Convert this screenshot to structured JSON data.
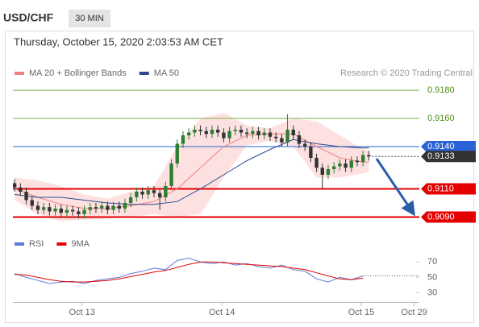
{
  "header": {
    "symbol": "USD/CHF",
    "interval": "30 MIN",
    "timestamp": "Thursday, October 15, 2020 2:03:53 AM CET"
  },
  "chart_data": [
    {
      "type": "candlestick",
      "credit": "Research © 2020 Trading Central",
      "xlim": [
        -0.3,
        69.7
      ],
      "ylim": [
        0.90811,
        0.91869
      ],
      "up_color": "#2e7d32",
      "down_color": "#333333",
      "candles": {
        "open": [
          0.9114,
          0.9111,
          0.9108,
          0.9102,
          0.9098,
          0.9095,
          0.9097,
          0.9094,
          0.9096,
          0.9093,
          0.9095,
          0.9094,
          0.9092,
          0.9095,
          0.9097,
          0.9096,
          0.9098,
          0.9095,
          0.9098,
          0.9096,
          0.91,
          0.9104,
          0.9108,
          0.9106,
          0.9109,
          0.9107,
          0.9104,
          0.9112,
          0.9128,
          0.9142,
          0.9148,
          0.915,
          0.9152,
          0.9151,
          0.9149,
          0.9152,
          0.915,
          0.9146,
          0.9151,
          0.9152,
          0.915,
          0.9149,
          0.9151,
          0.9148,
          0.915,
          0.9147,
          0.9146,
          0.9143,
          0.9152,
          0.9148,
          0.9142,
          0.914,
          0.9132,
          0.9125,
          0.912,
          0.9124,
          0.9126,
          0.9128,
          0.9125,
          0.913,
          0.9129,
          0.9134
        ],
        "high": [
          0.9117,
          0.9114,
          0.9111,
          0.9105,
          0.9101,
          0.91,
          0.91,
          0.9099,
          0.9099,
          0.9098,
          0.9098,
          0.9097,
          0.9098,
          0.91,
          0.91,
          0.9101,
          0.9101,
          0.9101,
          0.9101,
          0.9103,
          0.9107,
          0.9111,
          0.9111,
          0.9112,
          0.9112,
          0.911,
          0.9115,
          0.9131,
          0.9145,
          0.9151,
          0.9153,
          0.9155,
          0.9155,
          0.9154,
          0.9155,
          0.9155,
          0.9153,
          0.9154,
          0.9155,
          0.9155,
          0.9153,
          0.9154,
          0.9154,
          0.9153,
          0.9153,
          0.915,
          0.9149,
          0.9163,
          0.9155,
          0.9151,
          0.9145,
          0.9143,
          0.9135,
          0.9128,
          0.9127,
          0.9129,
          0.9131,
          0.9131,
          0.9133,
          0.9133,
          0.9137,
          0.9137
        ],
        "low": [
          0.9108,
          0.9105,
          0.9099,
          0.9095,
          0.9092,
          0.9092,
          0.9091,
          0.9091,
          0.909,
          0.909,
          0.9091,
          0.9089,
          0.9089,
          0.9092,
          0.9093,
          0.9093,
          0.9092,
          0.9092,
          0.9093,
          0.9093,
          0.9097,
          0.9101,
          0.9103,
          0.9103,
          0.9104,
          0.9095,
          0.9101,
          0.9109,
          0.9125,
          0.9139,
          0.9145,
          0.9147,
          0.9148,
          0.9146,
          0.9146,
          0.9147,
          0.9143,
          0.9143,
          0.9148,
          0.9147,
          0.9146,
          0.9146,
          0.9145,
          0.9145,
          0.9144,
          0.9143,
          0.914,
          0.914,
          0.9145,
          0.9139,
          0.9137,
          0.9129,
          0.9122,
          0.911,
          0.9117,
          0.9121,
          0.9123,
          0.9122,
          0.9122,
          0.9126,
          0.9126,
          0.913
        ],
        "close": [
          0.9111,
          0.9108,
          0.9102,
          0.9098,
          0.9095,
          0.9097,
          0.9094,
          0.9096,
          0.9093,
          0.9095,
          0.9094,
          0.9092,
          0.9095,
          0.9097,
          0.9096,
          0.9098,
          0.9095,
          0.9098,
          0.9096,
          0.91,
          0.9104,
          0.9108,
          0.9106,
          0.9109,
          0.9107,
          0.9104,
          0.9112,
          0.9128,
          0.9142,
          0.9148,
          0.915,
          0.9152,
          0.9151,
          0.9149,
          0.9152,
          0.915,
          0.9146,
          0.9151,
          0.9152,
          0.915,
          0.9149,
          0.9151,
          0.9148,
          0.915,
          0.9147,
          0.9146,
          0.9143,
          0.9152,
          0.9148,
          0.9142,
          0.914,
          0.9132,
          0.9125,
          0.912,
          0.9124,
          0.9126,
          0.9128,
          0.9125,
          0.913,
          0.9129,
          0.9134,
          0.9133
        ]
      },
      "series": [
        {
          "name": "MA 20 + Bollinger Bands",
          "color": "#f08080",
          "band_color": "#fcd9d9",
          "x": [
            0,
            4,
            8,
            12,
            16,
            20,
            24,
            28,
            32,
            36,
            40,
            44,
            48,
            52,
            56,
            60,
            61
          ],
          "values": [
            0.911,
            0.9104,
            0.9099,
            0.9096,
            0.9096,
            0.9098,
            0.9101,
            0.911,
            0.9125,
            0.914,
            0.9148,
            0.9149,
            0.9149,
            0.914,
            0.9132,
            0.9129,
            0.9129
          ],
          "upper": [
            0.9118,
            0.9116,
            0.9112,
            0.9106,
            0.9103,
            0.9108,
            0.9112,
            0.914,
            0.916,
            0.9164,
            0.9155,
            0.9153,
            0.916,
            0.9158,
            0.9148,
            0.9138,
            0.9137
          ],
          "lower": [
            0.9102,
            0.9092,
            0.9087,
            0.9088,
            0.9089,
            0.909,
            0.9092,
            0.909,
            0.9092,
            0.9118,
            0.9141,
            0.9144,
            0.914,
            0.9118,
            0.9118,
            0.9121,
            0.9122
          ]
        },
        {
          "name": "MA 50",
          "color": "#2b4c8c",
          "x": [
            0,
            4,
            8,
            12,
            16,
            20,
            24,
            28,
            32,
            36,
            40,
            44,
            48,
            52,
            56,
            60,
            61
          ],
          "values": [
            0.9106,
            0.9104,
            0.9104,
            0.9102,
            0.91,
            0.9099,
            0.9099,
            0.9101,
            0.911,
            0.912,
            0.913,
            0.9138,
            0.9145,
            0.9142,
            0.914,
            0.9139,
            0.9139
          ]
        }
      ],
      "levels": [
        {
          "value": 0.918,
          "label": "0.9180",
          "color": "#7cb342",
          "text_color": "#4c8c12",
          "linewidth": 1,
          "label_style": "text",
          "line": "solid"
        },
        {
          "value": 0.916,
          "label": "0.9160",
          "color": "#7cb342",
          "text_color": "#4c8c12",
          "linewidth": 1,
          "label_style": "text",
          "line": "solid"
        },
        {
          "value": 0.914,
          "label": "0.9140",
          "color": "#2962d6",
          "text_color": "#ffffff",
          "linewidth": 1,
          "label_style": "box",
          "line": "solid"
        },
        {
          "value": 0.9133,
          "label": "0.9133",
          "color": "#333333",
          "text_color": "#ffffff",
          "linewidth": 1,
          "label_style": "box",
          "line": "dotted"
        },
        {
          "value": 0.911,
          "label": "0.9110",
          "color": "#e50000",
          "text_color": "#ffffff",
          "linewidth": 2,
          "label_style": "box",
          "line": "solid"
        },
        {
          "value": 0.909,
          "label": "0.9090",
          "color": "#e50000",
          "text_color": "#ffffff",
          "linewidth": 2,
          "label_style": "box",
          "line": "solid"
        }
      ]
    },
    {
      "type": "line",
      "xlim": [
        -0.3,
        69.7
      ],
      "ylim": [
        20,
        85
      ],
      "yticks": [
        70,
        50,
        30
      ],
      "xticks": [
        {
          "value": 11.6,
          "label": "Oct 13"
        },
        {
          "value": 35.7,
          "label": "Oct 14"
        },
        {
          "value": 59.7,
          "label": "Oct 15"
        },
        {
          "value": 68.8,
          "label": "Oct 29"
        }
      ],
      "series": [
        {
          "name": "RSI",
          "color": "#5b7bd5",
          "x": [
            0,
            2,
            4,
            6,
            8,
            10,
            12,
            14,
            16,
            18,
            20,
            22,
            24,
            26,
            28,
            30,
            32,
            34,
            36,
            38,
            40,
            42,
            44,
            46,
            48,
            50,
            52,
            54,
            56,
            58,
            60
          ],
          "values": [
            55,
            50,
            46,
            42,
            44,
            45,
            42,
            46,
            48,
            50,
            55,
            58,
            62,
            60,
            72,
            75,
            70,
            68,
            70,
            66,
            68,
            64,
            62,
            66,
            60,
            58,
            48,
            44,
            50,
            47,
            52
          ]
        },
        {
          "name": "9MA",
          "color": "#e50000",
          "x": [
            0,
            2,
            4,
            6,
            8,
            10,
            12,
            14,
            16,
            18,
            20,
            22,
            24,
            26,
            28,
            30,
            32,
            34,
            36,
            38,
            40,
            42,
            44,
            46,
            48,
            50,
            52,
            54,
            56,
            58,
            60
          ],
          "values": [
            54,
            53,
            50,
            47,
            45,
            44,
            44,
            45,
            46,
            48,
            51,
            54,
            57,
            59,
            63,
            67,
            70,
            70,
            69,
            68,
            67,
            66,
            65,
            64,
            62,
            60,
            56,
            52,
            48,
            47,
            49
          ]
        }
      ]
    }
  ]
}
